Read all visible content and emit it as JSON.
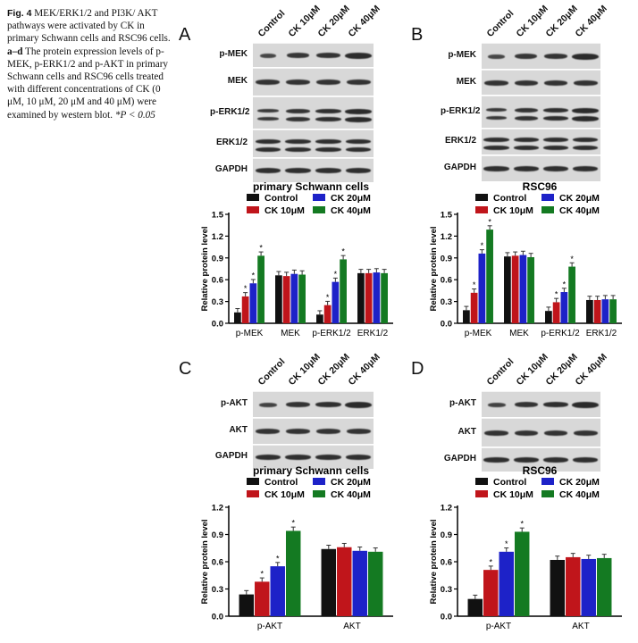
{
  "caption": {
    "fig_label": "Fig. 4",
    "text_1": " MEK/ERK1/2 and PI3K/ AKT pathways were activated by CK in primary Schwann cells and RSC96 cells. ",
    "text_bold": "a–d",
    "text_2": " The protein expression levels of p-MEK, p-ERK1/2 and p-AKT in primary Schwann cells and RSC96 cells treated with different concentrations of CK (0 μM, 10 μM, 20 μM and 40 μM) were examined by western blot. ",
    "text_3": "*P < 0.05"
  },
  "lanes": [
    "Control",
    "CK 10μM",
    "CK 20μM",
    "CK 40μM"
  ],
  "panels": {
    "A": {
      "letter": "A",
      "rows": [
        "p-MEK",
        "MEK",
        "p-ERK1/2",
        "ERK1/2",
        "GAPDH"
      ]
    },
    "B": {
      "letter": "B",
      "rows": [
        "p-MEK",
        "MEK",
        "p-ERK1/2",
        "ERK1/2",
        "GAPDH"
      ]
    },
    "C": {
      "letter": "C",
      "rows": [
        "p-AKT",
        "AKT",
        "GAPDH"
      ]
    },
    "D": {
      "letter": "D",
      "rows": [
        "p-AKT",
        "AKT",
        "GAPDH"
      ]
    }
  },
  "colors": {
    "Control": "#111111",
    "CK 10μM": "#c0151b",
    "CK 20μM": "#1d22c8",
    "CK 40μM": "#147a22"
  },
  "chart_data": [
    {
      "id": "A",
      "type": "bar",
      "title": "primary Schwann cells",
      "ylabel": "Relative protein level",
      "xlabel": "",
      "ylim": [
        0,
        1.5
      ],
      "yticks": [
        "0.0",
        "0.3",
        "0.6",
        "0.9",
        "1.2",
        "1.5"
      ],
      "categories": [
        "p-MEK",
        "MEK",
        "p-ERK1/2",
        "ERK1/2"
      ],
      "legend": [
        "Control",
        "CK 10μM",
        "CK 20μM",
        "CK 40μM"
      ],
      "series": [
        {
          "name": "Control",
          "values": [
            0.15,
            0.66,
            0.12,
            0.69
          ]
        },
        {
          "name": "CK 10μM",
          "values": [
            0.37,
            0.65,
            0.25,
            0.69
          ]
        },
        {
          "name": "CK 20μM",
          "values": [
            0.55,
            0.68,
            0.57,
            0.7
          ]
        },
        {
          "name": "CK 40μM",
          "values": [
            0.93,
            0.67,
            0.88,
            0.69
          ]
        }
      ],
      "star": [
        [
          false,
          false,
          false,
          false
        ],
        [
          true,
          false,
          true,
          false
        ],
        [
          true,
          false,
          true,
          false
        ],
        [
          true,
          false,
          true,
          false
        ]
      ]
    },
    {
      "id": "B",
      "type": "bar",
      "title": "RSC96",
      "ylabel": "Relative protein level",
      "xlabel": "",
      "ylim": [
        0,
        1.5
      ],
      "yticks": [
        "0.0",
        "0.3",
        "0.6",
        "0.9",
        "1.2",
        "1.5"
      ],
      "categories": [
        "p-MEK",
        "MEK",
        "p-ERK1/2",
        "ERK1/2"
      ],
      "legend": [
        "Control",
        "CK 10μM",
        "CK 20μM",
        "CK 40μM"
      ],
      "series": [
        {
          "name": "Control",
          "values": [
            0.18,
            0.92,
            0.17,
            0.32
          ]
        },
        {
          "name": "CK 10μM",
          "values": [
            0.42,
            0.93,
            0.29,
            0.32
          ]
        },
        {
          "name": "CK 20μM",
          "values": [
            0.96,
            0.94,
            0.43,
            0.33
          ]
        },
        {
          "name": "CK 40μM",
          "values": [
            1.29,
            0.91,
            0.78,
            0.33
          ]
        }
      ],
      "star": [
        [
          false,
          false,
          false,
          false
        ],
        [
          true,
          false,
          true,
          false
        ],
        [
          true,
          false,
          true,
          false
        ],
        [
          true,
          false,
          true,
          false
        ]
      ]
    },
    {
      "id": "C",
      "type": "bar",
      "title": "primary Schwann cells",
      "ylabel": "Relative protein level",
      "xlabel": "",
      "ylim": [
        0,
        1.2
      ],
      "yticks": [
        "0.0",
        "0.3",
        "0.6",
        "0.9",
        "1.2"
      ],
      "categories": [
        "p-AKT",
        "AKT"
      ],
      "legend": [
        "Control",
        "CK 10μM",
        "CK 20μM",
        "CK 40μM"
      ],
      "series": [
        {
          "name": "Control",
          "values": [
            0.24,
            0.74
          ]
        },
        {
          "name": "CK 10μM",
          "values": [
            0.38,
            0.76
          ]
        },
        {
          "name": "CK 20μM",
          "values": [
            0.55,
            0.72
          ]
        },
        {
          "name": "CK 40μM",
          "values": [
            0.94,
            0.71
          ]
        }
      ],
      "star": [
        [
          false,
          false
        ],
        [
          true,
          false
        ],
        [
          true,
          false
        ],
        [
          true,
          false
        ]
      ]
    },
    {
      "id": "D",
      "type": "bar",
      "title": "RSC96",
      "ylabel": "Relative protein level",
      "xlabel": "",
      "ylim": [
        0,
        1.2
      ],
      "yticks": [
        "0.0",
        "0.3",
        "0.6",
        "0.9",
        "1.2"
      ],
      "categories": [
        "p-AKT",
        "AKT"
      ],
      "legend": [
        "Control",
        "CK 10μM",
        "CK 20μM",
        "CK 40μM"
      ],
      "series": [
        {
          "name": "Control",
          "values": [
            0.19,
            0.62
          ]
        },
        {
          "name": "CK 10μM",
          "values": [
            0.51,
            0.65
          ]
        },
        {
          "name": "CK 20μM",
          "values": [
            0.71,
            0.63
          ]
        },
        {
          "name": "CK 40μM",
          "values": [
            0.93,
            0.64
          ]
        }
      ],
      "star": [
        [
          false,
          false
        ],
        [
          true,
          false
        ],
        [
          true,
          false
        ],
        [
          true,
          false
        ]
      ]
    }
  ]
}
